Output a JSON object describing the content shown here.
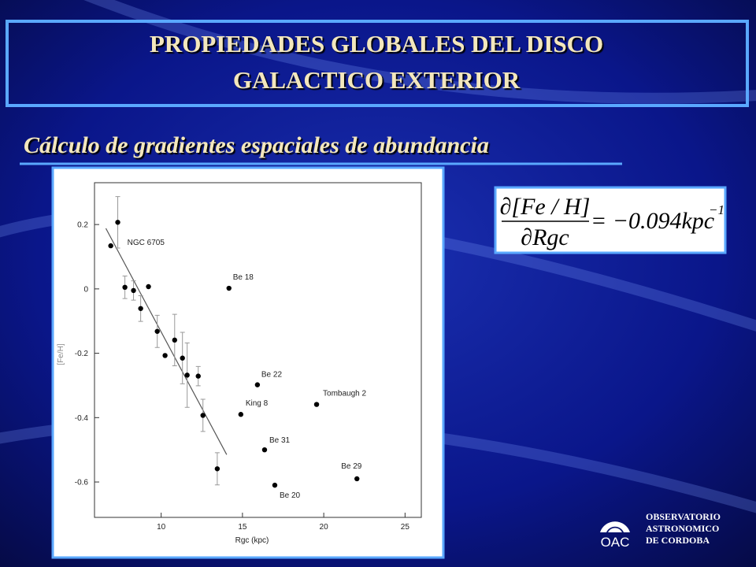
{
  "header": {
    "title": [
      "PROPIEDADES GLOBALES DEL DISCO",
      "GALACTICO EXTERIOR"
    ]
  },
  "subtitle": "Cálculo de gradientes espaciales de abundancia",
  "formula": {
    "numerator": "∂[Fe / H]",
    "denominator": "∂Rgc",
    "rhs": "= −0.094kpc",
    "exponent": "−1"
  },
  "logo": {
    "mark": "OAC",
    "lines": [
      "OBSERVATORIO",
      "ASTRONOMICO",
      "DE CORDOBA"
    ]
  },
  "chart_data": {
    "type": "scatter",
    "xlabel": "Rgc (kpc)",
    "ylabel": "[Fe/H]",
    "x": [
      6.9,
      7.33,
      7.77,
      8.3,
      8.74,
      9.22,
      9.76,
      10.24,
      10.83,
      11.31,
      11.6,
      12.28,
      12.57,
      13.45,
      14.17,
      15.92,
      14.9,
      19.56,
      16.36,
      16.99,
      22.04
    ],
    "y": [
      0.134,
      0.207,
      0.005,
      -0.005,
      -0.061,
      0.007,
      -0.132,
      -0.207,
      -0.159,
      -0.215,
      -0.268,
      -0.271,
      -0.393,
      -0.559,
      0.002,
      -0.298,
      -0.39,
      -0.359,
      -0.5,
      -0.61,
      -0.59
    ],
    "errors": [
      null,
      0.08,
      0.035,
      0.03,
      0.04,
      null,
      0.05,
      null,
      0.08,
      0.08,
      0.1,
      0.03,
      0.05,
      0.05,
      null,
      null,
      null,
      null,
      null,
      null,
      null
    ],
    "labels": [
      "NGC 6705",
      null,
      null,
      null,
      null,
      null,
      null,
      null,
      null,
      null,
      null,
      null,
      null,
      null,
      "Be 18",
      "Be 22",
      "King 8",
      "Tombaugh 2",
      "Be 31",
      "Be 20",
      "Be 29"
    ],
    "fit_line": {
      "x": [
        6.6,
        14.03
      ],
      "y": [
        0.188,
        -0.515
      ]
    },
    "xlim": [
      5.9,
      26
    ],
    "ylim": [
      -0.71,
      0.33
    ],
    "xticks": [
      10,
      15,
      20,
      25
    ],
    "yticks": [
      0.2,
      0,
      -0.2,
      -0.4,
      -0.6
    ],
    "color": "#000000"
  }
}
